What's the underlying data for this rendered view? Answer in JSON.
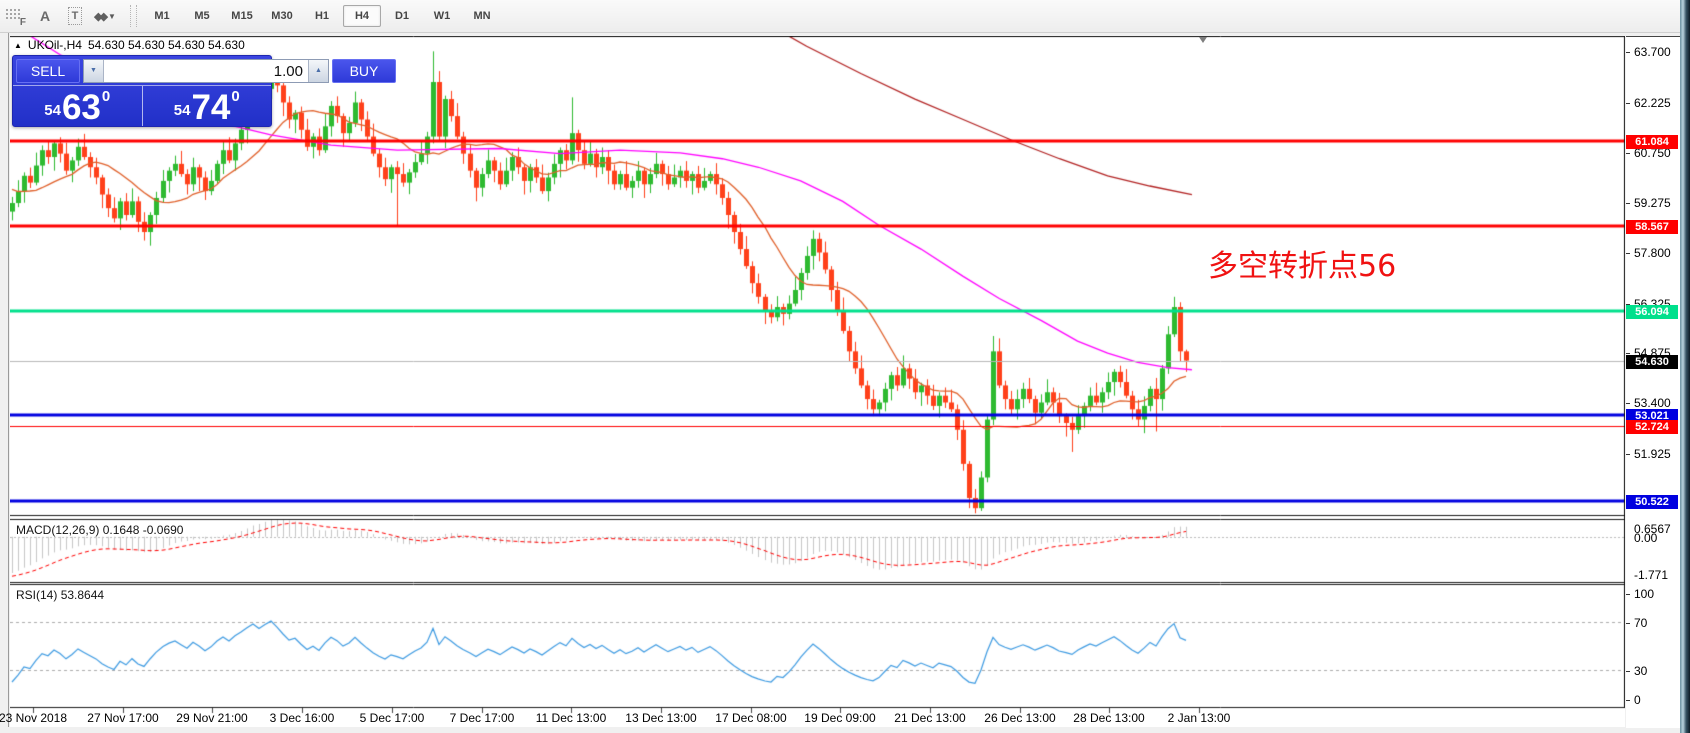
{
  "toolbar": {
    "grid_icon_letter": "F",
    "a_icon": "A",
    "t_icon": "T",
    "objects_glyph": "◆◆",
    "dropdown_caret": "▼",
    "timeframes": [
      "M1",
      "M5",
      "M15",
      "M30",
      "H1",
      "H4",
      "D1",
      "W1",
      "MN"
    ],
    "active_timeframe": "H4"
  },
  "title": {
    "collapse_icon": "▲",
    "symbol": "UKOil-,H4",
    "ohlc": "54.630 54.630 54.630 54.630"
  },
  "trade_panel": {
    "sell_label": "SELL",
    "buy_label": "BUY",
    "volume": "1.00",
    "down_arrow": "▼",
    "up_arrow": "▲",
    "sell_price": {
      "prefix": "54",
      "big": "63",
      "sup": "0"
    },
    "buy_price": {
      "prefix": "54",
      "big": "74",
      "sup": "0"
    }
  },
  "annotation": {
    "text": "多空转折点56",
    "color": "#F01212"
  },
  "price_scale": {
    "ticks": [
      "63.700",
      "62.225",
      "60.750",
      "59.275",
      "57.800",
      "56.325",
      "54.875",
      "53.400",
      "51.925"
    ],
    "tick_values": [
      63.7,
      62.225,
      60.75,
      59.275,
      57.8,
      56.325,
      54.875,
      53.4,
      51.925
    ]
  },
  "levels": [
    {
      "label": "61.084",
      "price": 61.084,
      "color": "#FF0000",
      "width": 3
    },
    {
      "label": "58.567",
      "price": 58.567,
      "color": "#FF0000",
      "width": 3
    },
    {
      "label": "56.094",
      "price": 56.094,
      "color": "#00E08C",
      "width": 3
    },
    {
      "label": "53.021",
      "price": 53.021,
      "color": "#0000E0",
      "width": 3
    },
    {
      "label": "52.724",
      "price": 52.724,
      "color": "#FF0000",
      "width": 1
    },
    {
      "label": "50.522",
      "price": 50.522,
      "color": "#0000E0",
      "width": 3
    }
  ],
  "current_price": {
    "label": "54.630",
    "price": 54.63,
    "line_color": "#B8B8B8",
    "label_bg": "#000000"
  },
  "indicators": {
    "macd": {
      "name": "MACD(12,26,9)",
      "value_main": "0.1648",
      "value_signal": "-0.0690",
      "scale_top": "0.6567",
      "scale_zero": "0.00",
      "scale_bottom": "-1.771",
      "hist_color": "#C6C6C6",
      "signal_color": "#FF0000"
    },
    "rsi": {
      "name": "RSI(14)",
      "value": "53.8644",
      "scale": [
        "100",
        "70",
        "30",
        "0"
      ],
      "levels": [
        70,
        30
      ],
      "line_color": "#3E9BE2"
    }
  },
  "time_axis": {
    "labels": [
      "23 Nov 2018",
      "27 Nov 17:00",
      "29 Nov 21:00",
      "3 Dec 16:00",
      "5 Dec 17:00",
      "7 Dec 17:00",
      "11 Dec 13:00",
      "13 Dec 13:00",
      "17 Dec 08:00",
      "19 Dec 09:00",
      "21 Dec 13:00",
      "26 Dec 13:00",
      "28 Dec 13:00",
      "2 Jan 13:00"
    ]
  },
  "chart_data": {
    "type": "candlestick",
    "symbol": "UKOil-",
    "timeframe": "H4",
    "ylim": [
      50.1,
      64.15
    ],
    "bull_color": "#2EBA30",
    "bear_color": "#FF401A",
    "candles": [
      [
        59,
        59.43,
        58.74,
        59.25
      ],
      [
        59.25,
        59.92,
        59.13,
        59.6
      ],
      [
        59.6,
        60.15,
        59.26,
        60.05
      ],
      [
        60.05,
        60.29,
        59.69,
        59.85
      ],
      [
        59.85,
        60.73,
        59.77,
        60.35
      ],
      [
        60.35,
        60.94,
        60.05,
        60.8
      ],
      [
        60.8,
        61.08,
        60.4,
        60.6
      ],
      [
        60.6,
        61.08,
        60.2,
        61
      ],
      [
        61,
        61.18,
        60.44,
        60.7
      ],
      [
        60.7,
        61.02,
        60.08,
        60.2
      ],
      [
        60.2,
        60.6,
        59.86,
        60.5
      ],
      [
        60.5,
        61.14,
        60.34,
        60.9
      ],
      [
        60.9,
        61.28,
        60.52,
        60.6
      ],
      [
        60.6,
        60.74,
        60,
        60.3
      ],
      [
        60.3,
        60.58,
        59.8,
        60
      ],
      [
        60,
        60.08,
        59.1,
        59.5
      ],
      [
        59.5,
        59.68,
        58.84,
        59.1
      ],
      [
        59.1,
        59.42,
        58.68,
        58.8
      ],
      [
        58.8,
        59.4,
        58.46,
        59.3
      ],
      [
        59.3,
        59.54,
        58.74,
        58.9
      ],
      [
        58.9,
        59.68,
        58.82,
        59.3
      ],
      [
        59.3,
        59.44,
        58.4,
        58.7
      ],
      [
        58.7,
        58.98,
        58.15,
        58.4
      ],
      [
        58.4,
        58.98,
        58,
        58.9
      ],
      [
        58.9,
        59.58,
        58.64,
        59.4
      ],
      [
        59.4,
        60.22,
        59.28,
        59.9
      ],
      [
        59.9,
        60.3,
        59.56,
        60.2
      ],
      [
        60.2,
        60.64,
        60.04,
        60.4
      ],
      [
        60.4,
        60.78,
        60.02,
        60.1
      ],
      [
        60.1,
        60.24,
        59.5,
        59.8
      ],
      [
        59.8,
        60.58,
        59.6,
        60.3
      ],
      [
        60.3,
        60.38,
        59.6,
        60
      ],
      [
        60,
        60.18,
        59.34,
        59.6
      ],
      [
        59.6,
        60.22,
        59.48,
        59.9
      ],
      [
        59.9,
        60.5,
        59.82,
        60.4
      ],
      [
        60.4,
        61.04,
        60.1,
        60.8
      ],
      [
        60.8,
        61.18,
        60.42,
        60.5
      ],
      [
        60.5,
        61.14,
        60.2,
        61
      ],
      [
        61,
        61.68,
        60.8,
        61.4
      ],
      [
        61.4,
        61.98,
        61,
        61.9
      ],
      [
        61.9,
        62.58,
        61.78,
        62.4
      ],
      [
        62.4,
        62.52,
        61.98,
        62.1
      ],
      [
        62.1,
        62.98,
        62.02,
        62.6
      ],
      [
        62.6,
        63.45,
        62.3,
        63.1
      ],
      [
        63.1,
        63.38,
        62.5,
        62.7
      ],
      [
        62.7,
        62.78,
        61.8,
        62.2
      ],
      [
        62.2,
        62.38,
        61.44,
        61.7
      ],
      [
        61.7,
        61.98,
        61.3,
        61.9
      ],
      [
        61.9,
        62.08,
        61.14,
        61.4
      ],
      [
        61.4,
        61.72,
        60.78,
        60.9
      ],
      [
        60.9,
        61.3,
        60.56,
        61.2
      ],
      [
        61.2,
        61.44,
        60.64,
        60.8
      ],
      [
        60.8,
        61.88,
        60.72,
        61.5
      ],
      [
        61.5,
        62.24,
        61.2,
        62.1
      ],
      [
        62.1,
        62.38,
        61.6,
        61.8
      ],
      [
        61.8,
        61.88,
        60.9,
        61.3
      ],
      [
        61.3,
        61.78,
        61.04,
        61.6
      ],
      [
        61.6,
        62.52,
        61.48,
        62.2
      ],
      [
        62.2,
        62.3,
        61.36,
        61.7
      ],
      [
        61.7,
        61.94,
        61.04,
        61.2
      ],
      [
        61.2,
        61.58,
        60.62,
        60.7
      ],
      [
        60.7,
        60.84,
        60,
        60.3
      ],
      [
        60.3,
        60.58,
        59.75,
        59.95
      ],
      [
        59.95,
        60.38,
        59.55,
        60.3
      ],
      [
        60.3,
        60.48,
        58.55,
        60.1
      ],
      [
        60.1,
        60.42,
        59.73,
        59.85
      ],
      [
        59.85,
        60.25,
        59.51,
        60.15
      ],
      [
        60.15,
        60.69,
        59.99,
        60.45
      ],
      [
        60.45,
        61.08,
        60.37,
        60.7
      ],
      [
        60.7,
        61.34,
        60.4,
        61.2
      ],
      [
        61.2,
        63.7,
        61,
        62.8
      ],
      [
        62.8,
        63.12,
        61.08,
        61.2
      ],
      [
        61.2,
        62.4,
        60.86,
        62.3
      ],
      [
        62.3,
        62.54,
        61.64,
        61.8
      ],
      [
        61.8,
        62.18,
        61.12,
        61.2
      ],
      [
        61.2,
        61.34,
        60.4,
        60.7
      ],
      [
        60.7,
        60.98,
        60,
        60.2
      ],
      [
        60.2,
        60.28,
        59.3,
        59.7
      ],
      [
        59.7,
        60.28,
        59.44,
        60.1
      ],
      [
        60.1,
        60.82,
        59.98,
        60.5
      ],
      [
        60.5,
        60.6,
        59.86,
        60.2
      ],
      [
        60.2,
        60.44,
        59.64,
        59.8
      ],
      [
        59.8,
        60.58,
        59.72,
        60.2
      ],
      [
        60.2,
        60.74,
        59.9,
        60.6
      ],
      [
        60.6,
        60.88,
        60.1,
        60.3
      ],
      [
        60.3,
        60.38,
        59.5,
        59.9
      ],
      [
        59.9,
        60.4,
        59.56,
        60.3
      ],
      [
        60.3,
        60.54,
        59.84,
        60
      ],
      [
        60,
        60.38,
        59.52,
        59.6
      ],
      [
        59.6,
        60.14,
        59.3,
        60
      ],
      [
        60,
        60.68,
        59.8,
        60.4
      ],
      [
        60.4,
        60.88,
        60,
        60.8
      ],
      [
        60.8,
        60.98,
        60.24,
        60.5
      ],
      [
        60.5,
        62.35,
        60.38,
        61.3
      ],
      [
        61.3,
        61.4,
        60.46,
        60.8
      ],
      [
        60.8,
        61.04,
        60.24,
        60.4
      ],
      [
        60.4,
        61.08,
        60.32,
        60.7
      ],
      [
        60.7,
        60.84,
        60,
        60.3
      ],
      [
        60.3,
        60.88,
        60.1,
        60.6
      ],
      [
        60.6,
        60.8,
        59.8,
        60.2
      ],
      [
        60.2,
        60.38,
        59.64,
        59.8
      ],
      [
        59.8,
        60.2,
        59.64,
        60.1
      ],
      [
        60.1,
        60.48,
        59.62,
        59.7
      ],
      [
        59.7,
        60.04,
        59.4,
        59.9
      ],
      [
        59.9,
        60.48,
        59.7,
        60.2
      ],
      [
        60.2,
        60.28,
        59.4,
        59.8
      ],
      [
        59.8,
        60.28,
        59.54,
        60.1
      ],
      [
        60.1,
        60.72,
        59.98,
        60.4
      ],
      [
        60.4,
        60.5,
        59.76,
        60.1
      ],
      [
        60.1,
        60.34,
        59.64,
        59.8
      ],
      [
        59.8,
        60.38,
        59.72,
        60
      ],
      [
        60,
        60.34,
        59.7,
        60.2
      ],
      [
        60.2,
        60.48,
        59.7,
        59.9
      ],
      [
        59.9,
        60.18,
        59.5,
        60.1
      ],
      [
        60.1,
        60.34,
        59.54,
        59.7
      ],
      [
        59.7,
        60.28,
        59.62,
        59.9
      ],
      [
        59.9,
        60.18,
        59.82,
        60.1
      ],
      [
        60.1,
        60.42,
        59.5,
        59.8
      ],
      [
        59.8,
        59.98,
        59.2,
        59.4
      ],
      [
        59.4,
        59.58,
        58.5,
        58.9
      ],
      [
        58.9,
        59,
        58.06,
        58.4
      ],
      [
        58.4,
        58.64,
        57.74,
        57.9
      ],
      [
        57.9,
        58.28,
        57.32,
        57.4
      ],
      [
        57.4,
        57.54,
        56.6,
        56.9
      ],
      [
        56.9,
        57.18,
        56.3,
        56.5
      ],
      [
        56.5,
        56.58,
        55.7,
        56.1
      ],
      [
        56.1,
        56.28,
        55.72,
        55.9
      ],
      [
        55.9,
        56.52,
        55.78,
        56.2
      ],
      [
        56.2,
        56.3,
        55.66,
        56
      ],
      [
        56,
        56.54,
        55.84,
        56.3
      ],
      [
        56.3,
        57.08,
        56.22,
        56.7
      ],
      [
        56.7,
        57.34,
        56.4,
        57.2
      ],
      [
        57.2,
        57.98,
        57,
        57.7
      ],
      [
        57.7,
        58.45,
        57.3,
        58.2
      ],
      [
        58.2,
        58.38,
        57.54,
        57.8
      ],
      [
        57.8,
        58.12,
        57.18,
        57.3
      ],
      [
        57.3,
        57.4,
        56.36,
        56.7
      ],
      [
        56.7,
        56.94,
        55.94,
        56.1
      ],
      [
        56.1,
        56.48,
        55.42,
        55.5
      ],
      [
        55.5,
        55.64,
        54.6,
        54.9
      ],
      [
        54.9,
        55.18,
        54.24,
        54.4
      ],
      [
        54.4,
        54.78,
        53.82,
        53.9
      ],
      [
        53.9,
        54.04,
        53.2,
        53.5
      ],
      [
        53.5,
        53.78,
        53,
        53.2
      ],
      [
        53.2,
        53.48,
        53,
        53.4
      ],
      [
        53.4,
        53.98,
        53.14,
        53.8
      ],
      [
        53.8,
        54.3,
        53.46,
        54.2
      ],
      [
        54.2,
        54.44,
        53.74,
        53.9
      ],
      [
        53.9,
        54.78,
        53.82,
        54.4
      ],
      [
        54.4,
        54.54,
        53.8,
        54.1
      ],
      [
        54.1,
        54.38,
        53.5,
        53.7
      ],
      [
        53.7,
        53.98,
        53.3,
        53.9
      ],
      [
        53.9,
        54.08,
        53.34,
        53.6
      ],
      [
        53.6,
        53.92,
        53.18,
        53.3
      ],
      [
        53.3,
        53.7,
        52.96,
        53.6
      ],
      [
        53.6,
        53.84,
        53.24,
        53.4
      ],
      [
        53.4,
        53.78,
        53.12,
        53.2
      ],
      [
        53.2,
        53.34,
        52.3,
        52.6
      ],
      [
        52.6,
        52.88,
        51.4,
        51.6
      ],
      [
        51.6,
        51.68,
        50.3,
        50.6
      ],
      [
        50.6,
        50.86,
        50.15,
        50.3
      ],
      [
        50.3,
        51.38,
        50.22,
        51.2
      ],
      [
        51.2,
        53,
        51.06,
        52.9
      ],
      [
        52.9,
        55.35,
        52.74,
        54.9
      ],
      [
        54.9,
        55.28,
        53.82,
        53.9
      ],
      [
        53.9,
        54.04,
        53.2,
        53.5
      ],
      [
        53.5,
        53.74,
        53.04,
        53.2
      ],
      [
        53.2,
        53.78,
        52.9,
        53.5
      ],
      [
        53.5,
        53.98,
        53.24,
        53.8
      ],
      [
        53.8,
        54.12,
        53.38,
        53.5
      ],
      [
        53.5,
        53.6,
        52.76,
        53.1
      ],
      [
        53.1,
        53.64,
        52.94,
        53.4
      ],
      [
        53.4,
        54.08,
        53.32,
        53.7
      ],
      [
        53.7,
        53.84,
        53.1,
        53.4
      ],
      [
        53.4,
        53.68,
        52.8,
        53
      ],
      [
        53,
        53.08,
        52.4,
        52.8
      ],
      [
        52.8,
        52.98,
        51.95,
        52.6
      ],
      [
        52.6,
        53.32,
        52.48,
        53
      ],
      [
        53,
        53.4,
        52.66,
        53.3
      ],
      [
        53.3,
        53.84,
        53.14,
        53.6
      ],
      [
        53.6,
        53.98,
        53.32,
        53.4
      ],
      [
        53.4,
        53.84,
        53.1,
        53.7
      ],
      [
        53.7,
        54.28,
        53.5,
        54
      ],
      [
        54,
        54.38,
        53.6,
        54.3
      ],
      [
        54.3,
        54.48,
        53.84,
        54
      ],
      [
        54,
        54.38,
        53.52,
        53.6
      ],
      [
        53.6,
        53.74,
        52.9,
        53.2
      ],
      [
        53.2,
        53.48,
        52.7,
        52.9
      ],
      [
        52.9,
        53.58,
        52.5,
        53.3
      ],
      [
        53.3,
        53.88,
        53.14,
        53.8
      ],
      [
        53.8,
        54.12,
        52.55,
        53.5
      ],
      [
        53.5,
        54.5,
        53.16,
        54.4
      ],
      [
        54.4,
        55.64,
        54.24,
        55.4
      ],
      [
        55.4,
        56.5,
        55.32,
        56.2
      ],
      [
        56.2,
        56.34,
        54.6,
        54.9
      ],
      [
        54.9,
        54.95,
        54.3,
        54.63
      ]
    ],
    "prehistory_closes": [
      67.5,
      67.1,
      66.8,
      66.2,
      65.9,
      65.3,
      64.9,
      64.4,
      64,
      63.4,
      63,
      62.5,
      62.1,
      61.6,
      61.2,
      60.8,
      60.5,
      60.9,
      60.4,
      60,
      59.7,
      60.1,
      59.8,
      59.5,
      59.9,
      59.6,
      59.3,
      59.6,
      59.2,
      59.1
    ],
    "overlays": {
      "fast_ma_period": 13,
      "fast_ma_color": "#E0602A",
      "mid_ma_color": "#FF00FF",
      "mid_ma_points": [
        [
          -1,
          64.6
        ],
        [
          8,
          63.6
        ],
        [
          20,
          62.5
        ],
        [
          30,
          61.8
        ],
        [
          43,
          61.25
        ],
        [
          53,
          60.95
        ],
        [
          64,
          60.8
        ],
        [
          81,
          60.85
        ],
        [
          91,
          60.7
        ],
        [
          101,
          60.8
        ],
        [
          111,
          60.72
        ],
        [
          118,
          60.55
        ],
        [
          124,
          60.3
        ],
        [
          131,
          59.9
        ],
        [
          138,
          59.3
        ],
        [
          144,
          58.6
        ],
        [
          151,
          57.9
        ],
        [
          158,
          57.1
        ],
        [
          164,
          56.45
        ],
        [
          171,
          55.8
        ],
        [
          177,
          55.2
        ],
        [
          182,
          54.85
        ],
        [
          187,
          54.58
        ],
        [
          192,
          54.42
        ],
        [
          196,
          54.36
        ]
      ],
      "slow_ma_color": "#B22222",
      "slow_ma_points": [
        [
          124,
          64.65
        ],
        [
          132,
          63.85
        ],
        [
          141,
          63.05
        ],
        [
          150,
          62.3
        ],
        [
          158,
          61.7
        ],
        [
          166,
          61.1
        ],
        [
          174,
          60.55
        ],
        [
          182,
          60.05
        ],
        [
          189,
          59.75
        ],
        [
          196,
          59.5
        ]
      ]
    },
    "macd_params": {
      "fast": 12,
      "slow": 26,
      "signal": 9,
      "ylim": [
        -1.771,
        0.6567
      ]
    },
    "rsi_params": {
      "period": 14,
      "ylim": [
        0,
        100
      ]
    }
  }
}
